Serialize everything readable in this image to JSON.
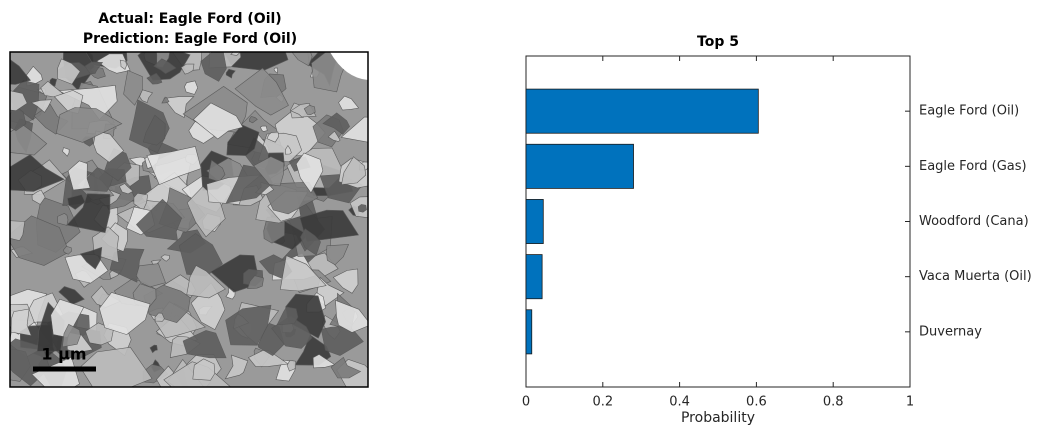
{
  "chart_data": [
    {
      "type": "image",
      "title": [
        "Actual: Eagle Ford (Oil)",
        "Prediction: Eagle Ford (Oil)"
      ],
      "scale_bar_label": "1 µm"
    },
    {
      "type": "barh",
      "title": "Top 5",
      "xlabel": "Probability",
      "categories": [
        "Eagle Ford (Oil)",
        "Eagle Ford (Gas)",
        "Woodford (Cana)",
        "Vaca Muerta (Oil)",
        "Duvernay"
      ],
      "values": [
        0.605,
        0.28,
        0.045,
        0.042,
        0.015
      ],
      "color": "#0072bd",
      "xlim": [
        0,
        1
      ],
      "xticks": [
        0,
        0.2,
        0.4,
        0.6,
        0.8,
        1
      ]
    }
  ]
}
